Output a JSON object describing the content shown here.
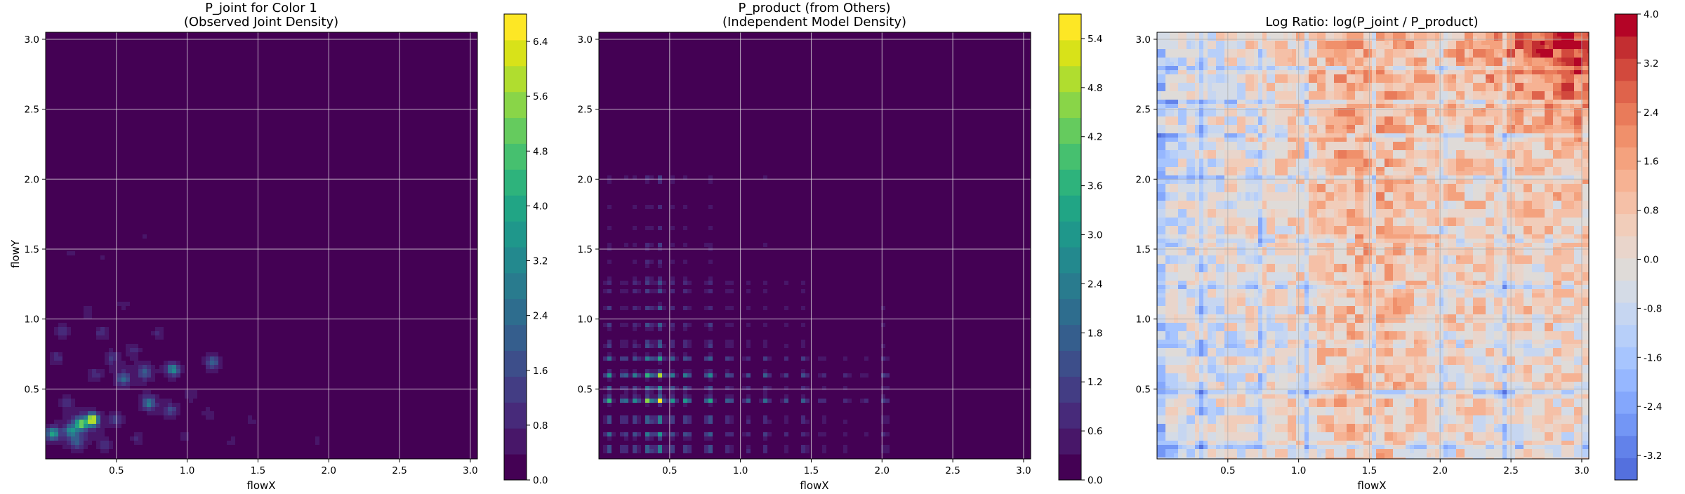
{
  "chart_data": [
    {
      "type": "heatmap",
      "title": "P_joint for Color 1",
      "subtitle": "(Observed Joint Density)",
      "xlabel": "flowX",
      "ylabel": "flowY",
      "xlim": [
        0.0,
        3.05
      ],
      "ylim": [
        0.0,
        3.05
      ],
      "xticks": [
        "0.5",
        "1.0",
        "1.5",
        "2.0",
        "2.5",
        "3.0"
      ],
      "yticks": [
        "0.5",
        "1.0",
        "1.5",
        "2.0",
        "2.5",
        "3.0"
      ],
      "grid": true,
      "colormap": "viridis",
      "colorbar": {
        "min": 0.0,
        "max": 6.8,
        "ticks": [
          "0.0",
          "0.8",
          "1.6",
          "2.4",
          "3.2",
          "4.0",
          "4.8",
          "5.6",
          "6.4"
        ],
        "levels": [
          "#440154",
          "#481769",
          "#472a7a",
          "#433d84",
          "#3d4e8a",
          "#355e8d",
          "#2e6d8e",
          "#297b8e",
          "#23898e",
          "#1f978b",
          "#21a585",
          "#2eb37c",
          "#46c06f",
          "#65cb5e",
          "#89d548",
          "#b0dd2f",
          "#d8e219",
          "#fde725"
        ]
      },
      "peaks": [
        {
          "x": 0.33,
          "y": 0.28,
          "value": 6.5
        },
        {
          "x": 0.25,
          "y": 0.25,
          "value": 4.4
        },
        {
          "x": 0.05,
          "y": 0.18,
          "value": 3.6
        },
        {
          "x": 0.18,
          "y": 0.2,
          "value": 2.6
        },
        {
          "x": 0.9,
          "y": 0.64,
          "value": 3.0
        },
        {
          "x": 0.73,
          "y": 0.4,
          "value": 2.4
        },
        {
          "x": 0.55,
          "y": 0.57,
          "value": 2.0
        },
        {
          "x": 0.7,
          "y": 0.62,
          "value": 1.7
        },
        {
          "x": 1.18,
          "y": 0.69,
          "value": 1.7
        },
        {
          "x": 0.88,
          "y": 0.35,
          "value": 1.2
        },
        {
          "x": 0.5,
          "y": 0.28,
          "value": 1.1
        },
        {
          "x": 0.47,
          "y": 0.72,
          "value": 0.9
        },
        {
          "x": 0.4,
          "y": 0.9,
          "value": 0.8
        },
        {
          "x": 0.12,
          "y": 0.92,
          "value": 0.9
        },
        {
          "x": 0.08,
          "y": 0.72,
          "value": 0.8
        },
        {
          "x": 0.15,
          "y": 0.4,
          "value": 0.9
        },
        {
          "x": 0.35,
          "y": 0.6,
          "value": 0.8
        },
        {
          "x": 0.62,
          "y": 0.78,
          "value": 0.7
        },
        {
          "x": 0.8,
          "y": 0.9,
          "value": 0.6
        },
        {
          "x": 1.02,
          "y": 0.46,
          "value": 0.6
        },
        {
          "x": 1.15,
          "y": 0.32,
          "value": 0.5
        },
        {
          "x": 1.45,
          "y": 0.28,
          "value": 0.4
        },
        {
          "x": 1.32,
          "y": 0.12,
          "value": 0.4
        },
        {
          "x": 1.92,
          "y": 0.13,
          "value": 0.45
        },
        {
          "x": 0.65,
          "y": 0.15,
          "value": 0.6
        },
        {
          "x": 0.98,
          "y": 0.17,
          "value": 0.5
        },
        {
          "x": 0.3,
          "y": 1.05,
          "value": 0.5
        },
        {
          "x": 0.55,
          "y": 1.1,
          "value": 0.45
        },
        {
          "x": 0.18,
          "y": 1.48,
          "value": 0.35
        },
        {
          "x": 0.95,
          "y": 1.25,
          "value": 0.3
        },
        {
          "x": 0.4,
          "y": 1.45,
          "value": 0.3
        },
        {
          "x": 0.7,
          "y": 1.6,
          "value": 0.3
        },
        {
          "x": 0.22,
          "y": 0.12,
          "value": 1.4
        },
        {
          "x": 0.42,
          "y": 0.1,
          "value": 0.9
        }
      ]
    },
    {
      "type": "heatmap",
      "title": "P_product (from Others)",
      "subtitle": "(Independent Model Density)",
      "xlabel": "flowX",
      "ylabel": "",
      "xlim": [
        0.0,
        3.05
      ],
      "ylim": [
        0.0,
        3.05
      ],
      "xticks": [
        "0.5",
        "1.0",
        "1.5",
        "2.0",
        "2.5",
        "3.0"
      ],
      "yticks": [
        "0.5",
        "1.0",
        "1.5",
        "2.0",
        "2.5",
        "3.0"
      ],
      "grid": true,
      "colormap": "viridis",
      "colorbar": {
        "min": 0.0,
        "max": 5.7,
        "ticks": [
          "0.0",
          "0.6",
          "1.2",
          "1.8",
          "2.4",
          "3.0",
          "3.6",
          "4.2",
          "4.8",
          "5.4"
        ],
        "levels": [
          "#440154",
          "#481769",
          "#472a7a",
          "#433d84",
          "#3d4e8a",
          "#355e8d",
          "#2e6d8e",
          "#297b8e",
          "#23898e",
          "#1f978b",
          "#21a585",
          "#2eb37c",
          "#46c06f",
          "#65cb5e",
          "#89d548",
          "#b0dd2f",
          "#d8e219",
          "#fde725"
        ]
      },
      "marginal_x": [
        {
          "x": 0.07,
          "w": 1.0
        },
        {
          "x": 0.18,
          "w": 0.7
        },
        {
          "x": 0.26,
          "w": 0.8
        },
        {
          "x": 0.35,
          "w": 1.3
        },
        {
          "x": 0.43,
          "w": 1.6
        },
        {
          "x": 0.52,
          "w": 0.8
        },
        {
          "x": 0.62,
          "w": 0.9
        },
        {
          "x": 0.78,
          "w": 1.0
        },
        {
          "x": 0.92,
          "w": 0.6
        },
        {
          "x": 1.05,
          "w": 0.45
        },
        {
          "x": 1.18,
          "w": 0.55
        },
        {
          "x": 1.32,
          "w": 0.35
        },
        {
          "x": 1.45,
          "w": 0.5
        },
        {
          "x": 1.58,
          "w": 0.3
        },
        {
          "x": 1.75,
          "w": 0.25
        },
        {
          "x": 1.88,
          "w": 0.2
        },
        {
          "x": 2.02,
          "w": 0.4
        }
      ],
      "marginal_y": [
        {
          "y": 0.07,
          "w": 0.9
        },
        {
          "y": 0.17,
          "w": 0.8
        },
        {
          "y": 0.28,
          "w": 0.9
        },
        {
          "y": 0.42,
          "w": 1.5
        },
        {
          "y": 0.5,
          "w": 0.7
        },
        {
          "y": 0.6,
          "w": 1.2
        },
        {
          "y": 0.72,
          "w": 0.8
        },
        {
          "y": 0.82,
          "w": 0.6
        },
        {
          "y": 0.95,
          "w": 0.5
        },
        {
          "y": 1.08,
          "w": 0.4
        },
        {
          "y": 1.2,
          "w": 0.35
        },
        {
          "y": 1.27,
          "w": 0.45
        },
        {
          "y": 1.4,
          "w": 0.25
        },
        {
          "y": 1.52,
          "w": 0.3
        },
        {
          "y": 1.65,
          "w": 0.2
        },
        {
          "y": 1.8,
          "w": 0.2
        },
        {
          "y": 2.0,
          "w": 0.3
        }
      ]
    },
    {
      "type": "heatmap",
      "title": "Log Ratio: log(P_joint / P_product)",
      "xlabel": "flowX",
      "ylabel": "",
      "xlim": [
        0.0,
        3.05
      ],
      "ylim": [
        0.0,
        3.05
      ],
      "xticks": [
        "0.5",
        "1.0",
        "1.5",
        "2.0",
        "2.5",
        "3.0"
      ],
      "yticks": [
        "0.5",
        "1.0",
        "1.5",
        "2.0",
        "2.5",
        "3.0"
      ],
      "grid": true,
      "colormap": "coolwarm",
      "colorbar": {
        "min": -3.6,
        "max": 4.0,
        "ticks": [
          "-3.2",
          "-2.4",
          "-1.6",
          "-0.8",
          "0.0",
          "0.8",
          "1.6",
          "2.4",
          "3.2",
          "4.0"
        ],
        "levels": [
          "#5470de",
          "#6282ea",
          "#7396f5",
          "#84a7fc",
          "#96b7ff",
          "#a7c5fe",
          "#b7cff9",
          "#c6d6f1",
          "#d4dbe6",
          "#dfdbd8",
          "#e9d5cb",
          "#f1cdba",
          "#f5c0a7",
          "#f6b293",
          "#f4a27e",
          "#f0906b",
          "#e97b5a",
          "#df634b",
          "#d2493d",
          "#c32e31",
          "#b40426"
        ]
      },
      "features": {
        "blue_lines_x": [
          0.03,
          0.32,
          0.72,
          1.05,
          1.53,
          2.02,
          2.45
        ],
        "blue_lines_y": [
          0.08,
          0.48,
          0.82,
          1.22,
          1.55,
          2.02,
          2.32,
          2.55,
          2.8
        ],
        "warm_top_right": {
          "x_from": 2.0,
          "y_from": 2.2,
          "peak": 3.8
        }
      }
    }
  ]
}
